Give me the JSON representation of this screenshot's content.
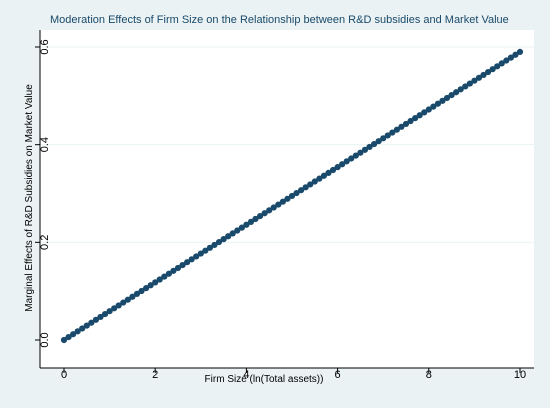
{
  "chart_data": {
    "type": "line",
    "title": "Moderation Effects of Firm Size on the Relationship between R&D subsidies and Market Value",
    "xlabel": "Firm Size (ln(Total assets))",
    "ylabel": "Marginal Effects of R&D Subsidies on Market Value",
    "xlim": [
      0,
      10
    ],
    "ylim": [
      0,
      0.6
    ],
    "x_ticks": [
      0,
      2,
      4,
      6,
      8,
      10
    ],
    "x_tick_labels": [
      "0",
      "2",
      "4",
      "6",
      "8",
      "10"
    ],
    "y_ticks": [
      0,
      0.2,
      0.4,
      0.6
    ],
    "y_tick_labels": [
      "0.0",
      "0.2",
      "0.4",
      "0.6"
    ],
    "grid": "horizontal",
    "series": [
      {
        "color": "#1a4a6b",
        "marker": "circle",
        "x": [
          0,
          0.1,
          0.2,
          0.3,
          0.4,
          0.5,
          0.6,
          0.7,
          0.8,
          0.9,
          1,
          1.1,
          1.2,
          1.3,
          1.4,
          1.5,
          1.6,
          1.7,
          1.8,
          1.9,
          2,
          2.1,
          2.2,
          2.3,
          2.4,
          2.5,
          2.6,
          2.7,
          2.8,
          2.9,
          3,
          3.1,
          3.2,
          3.3,
          3.4,
          3.5,
          3.6,
          3.7,
          3.8,
          3.9,
          4,
          4.1,
          4.2,
          4.3,
          4.4,
          4.5,
          4.6,
          4.7,
          4.8,
          4.9,
          5,
          5.1,
          5.2,
          5.3,
          5.4,
          5.5,
          5.6,
          5.7,
          5.8,
          5.9,
          6,
          6.1,
          6.2,
          6.3,
          6.4,
          6.5,
          6.6,
          6.7,
          6.8,
          6.9,
          7,
          7.1,
          7.2,
          7.3,
          7.4,
          7.5,
          7.6,
          7.7,
          7.8,
          7.9,
          8,
          8.1,
          8.2,
          8.3,
          8.4,
          8.5,
          8.6,
          8.7,
          8.8,
          8.9,
          9,
          9.1,
          9.2,
          9.3,
          9.4,
          9.5,
          9.6,
          9.7,
          9.8,
          9.9,
          10
        ],
        "y": [
          0,
          0.0059,
          0.0118,
          0.0177,
          0.0236,
          0.0295,
          0.0354,
          0.0413,
          0.0472,
          0.0531,
          0.059,
          0.0649,
          0.0708,
          0.0767,
          0.0826,
          0.0885,
          0.0944,
          0.1003,
          0.1062,
          0.1121,
          0.118,
          0.1239,
          0.1298,
          0.1357,
          0.1416,
          0.1475,
          0.1534,
          0.1593,
          0.1652,
          0.1711,
          0.177,
          0.1829,
          0.1888,
          0.1947,
          0.2006,
          0.2065,
          0.2124,
          0.2183,
          0.2242,
          0.2301,
          0.236,
          0.2419,
          0.2478,
          0.2537,
          0.2596,
          0.2655,
          0.2714,
          0.2773,
          0.2832,
          0.2891,
          0.295,
          0.3009,
          0.3068,
          0.3127,
          0.3186,
          0.3245,
          0.3304,
          0.3363,
          0.3422,
          0.3481,
          0.354,
          0.3599,
          0.3658,
          0.3717,
          0.3776,
          0.3835,
          0.3894,
          0.3953,
          0.4012,
          0.4071,
          0.413,
          0.4189,
          0.4248,
          0.4307,
          0.4366,
          0.4425,
          0.4484,
          0.4543,
          0.4602,
          0.4661,
          0.472,
          0.4779,
          0.4838,
          0.4897,
          0.4956,
          0.5015,
          0.5074,
          0.5133,
          0.5192,
          0.5251,
          0.531,
          0.5369,
          0.5428,
          0.5487,
          0.5546,
          0.5605,
          0.5664,
          0.5723,
          0.5782,
          0.5841,
          0.59
        ]
      }
    ]
  }
}
